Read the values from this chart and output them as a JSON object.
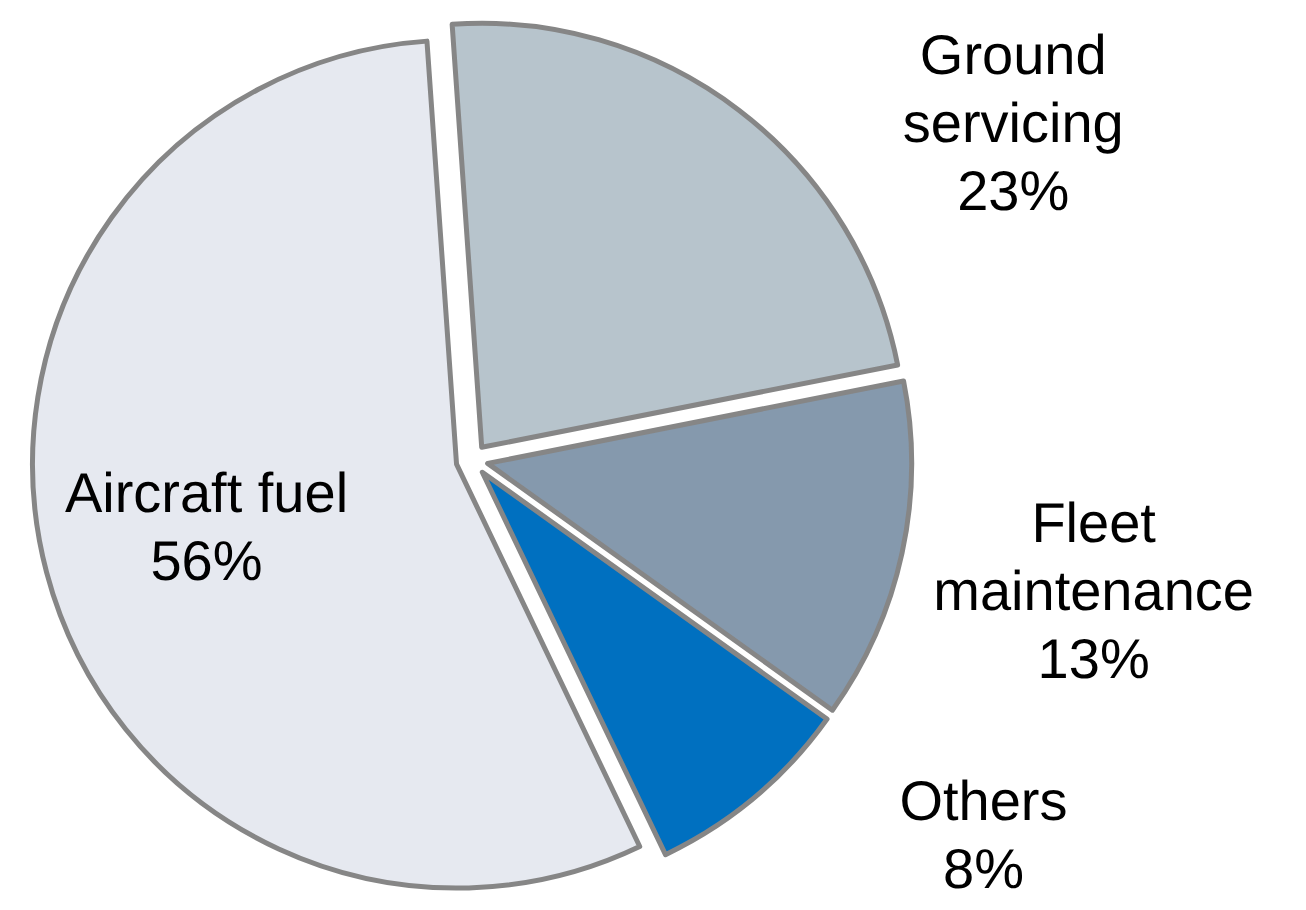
{
  "chart_data": {
    "type": "pie",
    "categories": [
      "Ground servicing",
      "Fleet maintenance",
      "Others",
      "Aircraft fuel"
    ],
    "values": [
      23,
      13,
      8,
      56
    ],
    "colors": [
      "#b7c4cc",
      "#8599ad",
      "#0070c0",
      "#e6e9f0"
    ],
    "value_labels": [
      "23%",
      "13%",
      "8%",
      "56%"
    ]
  }
}
